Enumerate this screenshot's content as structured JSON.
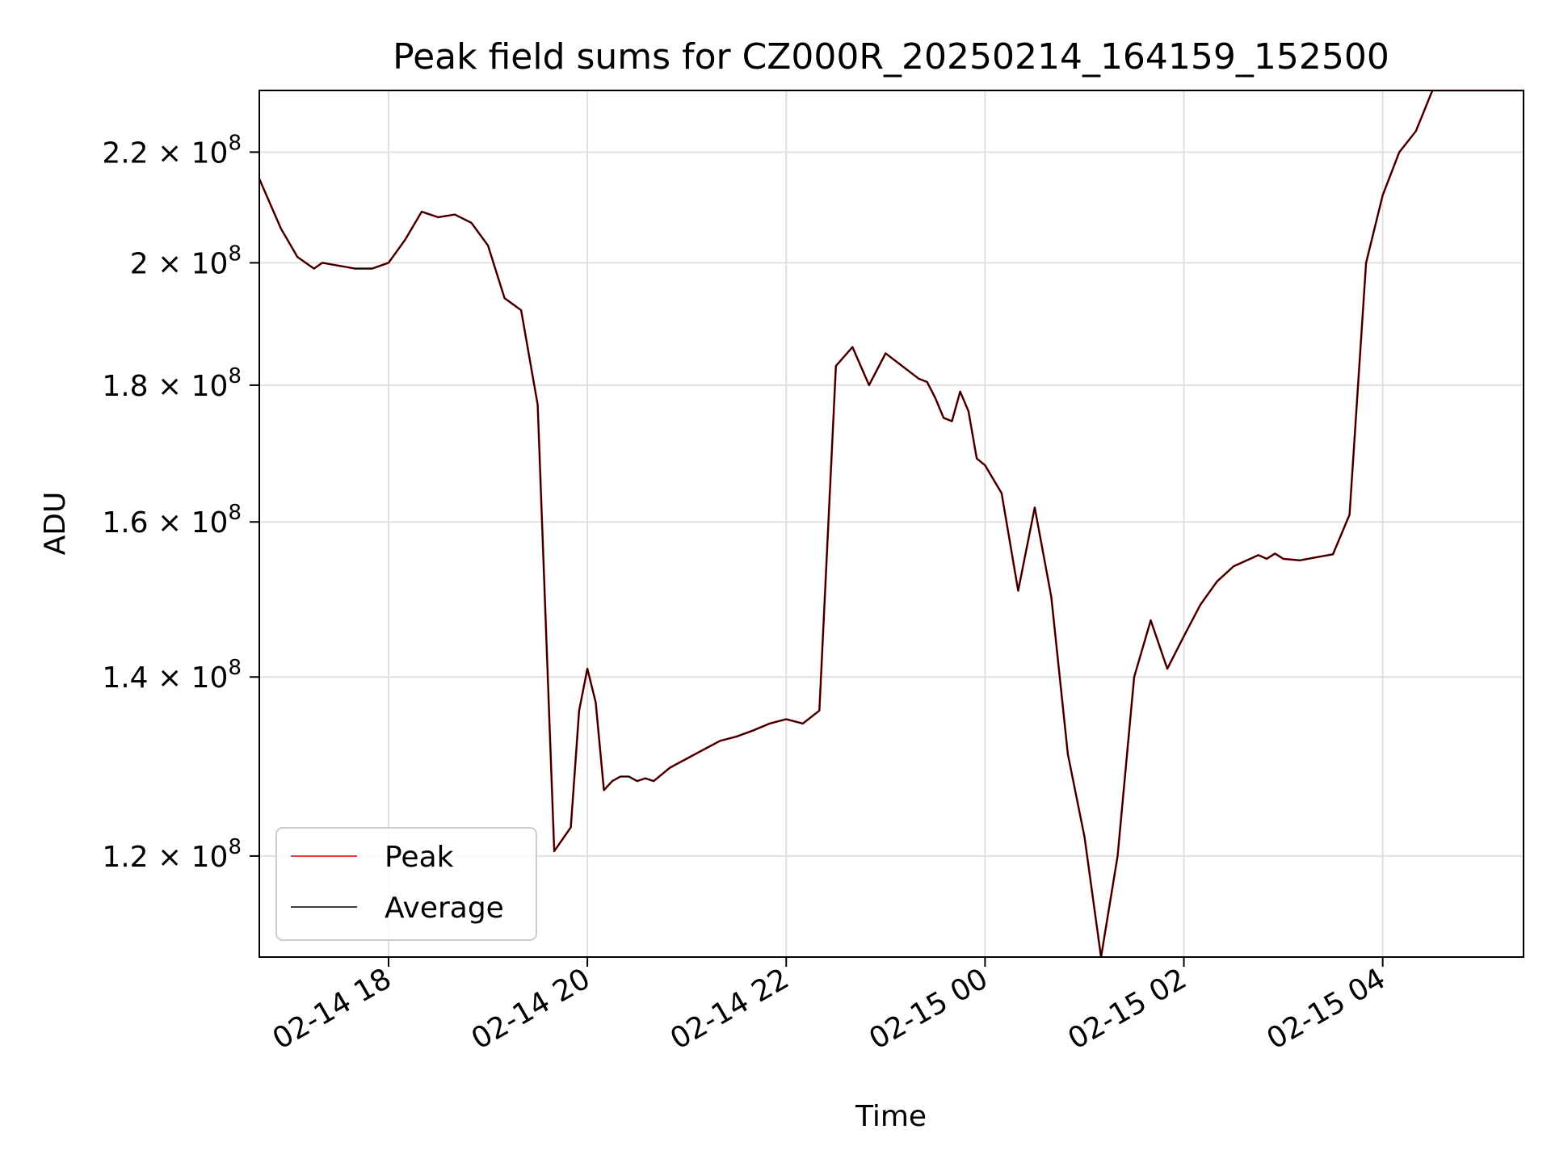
{
  "chart_data": {
    "type": "line",
    "title": "Peak field sums for CZ000R_20250214_164159_152500",
    "xlabel": "Time",
    "ylabel": "ADU",
    "yscale": "log",
    "ylim": [
      110000000,
      232000000
    ],
    "xlim": [
      "2025-02-14 16:42",
      "2025-02-15 05:25"
    ],
    "x_ticks": [
      "02-14 18",
      "02-14 20",
      "02-14 22",
      "02-15 00",
      "02-15 02",
      "02-15 04"
    ],
    "y_ticks": [
      {
        "value": 120000000,
        "mantissa": "1.2",
        "exponent": "8"
      },
      {
        "value": 140000000,
        "mantissa": "1.4",
        "exponent": "8"
      },
      {
        "value": 160000000,
        "mantissa": "1.6",
        "exponent": "8"
      },
      {
        "value": 180000000,
        "mantissa": "1.8",
        "exponent": "8"
      },
      {
        "value": 200000000,
        "mantissa": "2",
        "exponent": "8"
      },
      {
        "value": 220000000,
        "mantissa": "2.2",
        "exponent": "8"
      }
    ],
    "grid": true,
    "legend_position": "lower-left",
    "x": [
      "2025-02-14 16:42",
      "2025-02-14 16:55",
      "2025-02-14 17:05",
      "2025-02-14 17:15",
      "2025-02-14 17:20",
      "2025-02-14 17:30",
      "2025-02-14 17:40",
      "2025-02-14 17:50",
      "2025-02-14 18:00",
      "2025-02-14 18:10",
      "2025-02-14 18:20",
      "2025-02-14 18:30",
      "2025-02-14 18:40",
      "2025-02-14 18:50",
      "2025-02-14 19:00",
      "2025-02-14 19:10",
      "2025-02-14 19:20",
      "2025-02-14 19:30",
      "2025-02-14 19:40",
      "2025-02-14 19:50",
      "2025-02-14 19:55",
      "2025-02-14 20:00",
      "2025-02-14 20:05",
      "2025-02-14 20:10",
      "2025-02-14 20:15",
      "2025-02-14 20:20",
      "2025-02-14 20:25",
      "2025-02-14 20:30",
      "2025-02-14 20:35",
      "2025-02-14 20:40",
      "2025-02-14 20:50",
      "2025-02-14 21:00",
      "2025-02-14 21:10",
      "2025-02-14 21:20",
      "2025-02-14 21:30",
      "2025-02-14 21:40",
      "2025-02-14 21:50",
      "2025-02-14 22:00",
      "2025-02-14 22:10",
      "2025-02-14 22:20",
      "2025-02-14 22:30",
      "2025-02-14 22:40",
      "2025-02-14 22:50",
      "2025-02-14 23:00",
      "2025-02-14 23:20",
      "2025-02-14 23:25",
      "2025-02-14 23:30",
      "2025-02-14 23:35",
      "2025-02-14 23:40",
      "2025-02-14 23:45",
      "2025-02-14 23:50",
      "2025-02-14 23:55",
      "2025-02-15 00:00",
      "2025-02-15 00:05",
      "2025-02-15 00:10",
      "2025-02-15 00:20",
      "2025-02-15 00:30",
      "2025-02-15 00:40",
      "2025-02-15 00:50",
      "2025-02-15 01:00",
      "2025-02-15 01:10",
      "2025-02-15 01:20",
      "2025-02-15 01:30",
      "2025-02-15 01:40",
      "2025-02-15 01:50",
      "2025-02-15 02:00",
      "2025-02-15 02:10",
      "2025-02-15 02:20",
      "2025-02-15 02:30",
      "2025-02-15 02:40",
      "2025-02-15 02:45",
      "2025-02-15 02:50",
      "2025-02-15 02:55",
      "2025-02-15 03:00",
      "2025-02-15 03:10",
      "2025-02-15 03:20",
      "2025-02-15 03:30",
      "2025-02-15 03:40",
      "2025-02-15 03:50",
      "2025-02-15 04:00",
      "2025-02-15 04:10",
      "2025-02-15 04:20",
      "2025-02-15 04:30",
      "2025-02-15 04:40",
      "2025-02-15 04:50",
      "2025-02-15 05:00",
      "2025-02-15 05:10",
      "2025-02-15 05:20",
      "2025-02-15 05:25"
    ],
    "series": [
      {
        "name": "Peak",
        "color": "#e00000",
        "values": [
          215000000,
          206000000,
          201000000,
          199000000,
          200000000,
          199500000,
          199000000,
          199000000,
          200000000,
          204000000,
          209000000,
          208000000,
          208500000,
          207000000,
          203000000,
          194000000,
          192000000,
          177000000,
          120500000,
          123000000,
          136000000,
          141000000,
          137000000,
          127000000,
          128000000,
          128500000,
          128500000,
          128000000,
          128300000,
          128000000,
          129500000,
          130500000,
          131500000,
          132500000,
          133000000,
          133700000,
          134500000,
          135000000,
          134500000,
          136000000,
          183000000,
          186000000,
          180000000,
          185000000,
          181000000,
          180500000,
          178000000,
          175000000,
          174500000,
          179000000,
          176000000,
          169000000,
          168000000,
          166000000,
          164000000,
          150800000,
          162000000,
          150000000,
          131000000,
          122000000,
          110000000,
          120000000,
          140000000,
          147000000,
          141000000,
          145000000,
          149000000,
          152000000,
          154000000,
          155000000,
          155500000,
          155000000,
          155700000,
          155000000,
          154800000,
          155200000,
          155600000,
          161000000,
          200000000,
          212000000,
          220000000,
          224000000,
          232000000,
          232000000,
          232000000,
          232000000,
          232000000,
          232000000,
          232000000
        ]
      },
      {
        "name": "Average",
        "color": "#000000",
        "values": [
          215000000,
          206000000,
          201000000,
          199000000,
          200000000,
          199500000,
          199000000,
          199000000,
          200000000,
          204000000,
          209000000,
          208000000,
          208500000,
          207000000,
          203000000,
          194000000,
          192000000,
          177000000,
          120500000,
          123000000,
          136000000,
          141000000,
          137000000,
          127000000,
          128000000,
          128500000,
          128500000,
          128000000,
          128300000,
          128000000,
          129500000,
          130500000,
          131500000,
          132500000,
          133000000,
          133700000,
          134500000,
          135000000,
          134500000,
          136000000,
          183000000,
          186000000,
          180000000,
          185000000,
          181000000,
          180500000,
          178000000,
          175000000,
          174500000,
          179000000,
          176000000,
          169000000,
          168000000,
          166000000,
          164000000,
          150800000,
          162000000,
          150000000,
          131000000,
          122000000,
          110000000,
          120000000,
          140000000,
          147000000,
          141000000,
          145000000,
          149000000,
          152000000,
          154000000,
          155000000,
          155500000,
          155000000,
          155700000,
          155000000,
          154800000,
          155200000,
          155600000,
          161000000,
          200000000,
          212000000,
          220000000,
          224000000,
          232000000,
          232000000,
          232000000,
          232000000,
          232000000,
          232000000,
          232000000
        ]
      }
    ]
  }
}
